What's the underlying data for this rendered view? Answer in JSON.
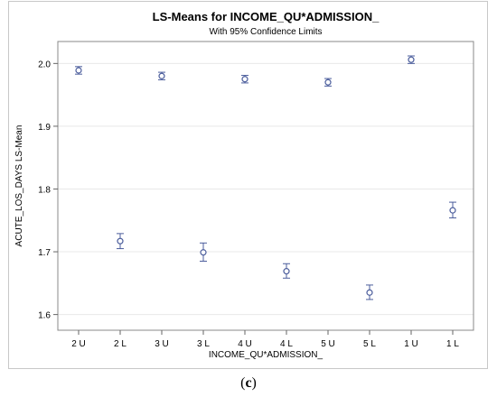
{
  "caption": {
    "open": "(",
    "letter": "c",
    "close": ")"
  },
  "chart_data": {
    "type": "scatter",
    "title": "LS-Means for INCOME_QU*ADMISSION_",
    "subtitle": "With 95% Confidence Limits",
    "xlabel": "INCOME_QU*ADMISSION_",
    "ylabel": "ACUTE_LOS_DAYS LS-Mean",
    "categories": [
      "2 U",
      "2 L",
      "3 U",
      "3 L",
      "4 U",
      "4 L",
      "5 U",
      "5 L",
      "1 U",
      "1 L"
    ],
    "values": [
      1.989,
      1.717,
      1.98,
      1.699,
      1.975,
      1.669,
      1.97,
      1.635,
      2.006,
      1.766
    ],
    "lower": [
      1.983,
      1.705,
      1.974,
      1.685,
      1.969,
      1.658,
      1.964,
      1.624,
      2.0,
      1.754
    ],
    "upper": [
      1.995,
      1.729,
      1.986,
      1.714,
      1.981,
      1.681,
      1.976,
      1.647,
      2.012,
      1.779
    ],
    "ylim": [
      1.575,
      2.035
    ],
    "yticks": [
      1.6,
      1.7,
      1.8,
      1.9,
      2.0
    ],
    "ytick_labels": [
      "1.6",
      "1.7",
      "1.8",
      "1.9",
      "2.0"
    ],
    "grid": "horizontal",
    "marker_color": "#4b5d9c"
  }
}
